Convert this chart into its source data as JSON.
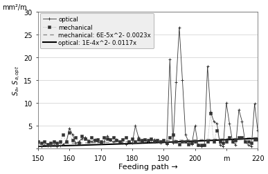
{
  "xlabel": "Feeding path →",
  "ylabel": "$S_a$, $S_{a,opt}$",
  "ylabel2": "mm²/m",
  "xlim": [
    150,
    220
  ],
  "ylim": [
    0,
    30
  ],
  "xticks": [
    150,
    160,
    170,
    180,
    190,
    200,
    210,
    220
  ],
  "xtick_labels": [
    "150",
    "160",
    "170",
    "180",
    "190",
    "200",
    "m",
    "220"
  ],
  "yticks": [
    0,
    5,
    10,
    15,
    20,
    25,
    30
  ],
  "optical_x": [
    150,
    151,
    152,
    153,
    154,
    155,
    156,
    157,
    158,
    159,
    160,
    161,
    162,
    163,
    164,
    165,
    166,
    167,
    168,
    169,
    170,
    171,
    172,
    173,
    174,
    175,
    176,
    177,
    178,
    179,
    180,
    181,
    182,
    183,
    184,
    185,
    186,
    187,
    188,
    189,
    190,
    191,
    192,
    193,
    194,
    195,
    196,
    197,
    198,
    199,
    200,
    201,
    202,
    203,
    204,
    205,
    206,
    207,
    208,
    209,
    210,
    211,
    212,
    213,
    214,
    215,
    216,
    217,
    218,
    219,
    220
  ],
  "optical_y": [
    0.5,
    0.5,
    0.8,
    0.6,
    0.7,
    0.8,
    0.5,
    0.6,
    0.9,
    1.5,
    4.5,
    3.0,
    1.2,
    1.5,
    2.2,
    2.5,
    1.8,
    1.5,
    2.0,
    1.5,
    1.2,
    1.5,
    2.8,
    1.8,
    1.5,
    2.0,
    1.5,
    1.2,
    1.0,
    1.5,
    1.2,
    5.0,
    2.5,
    1.5,
    1.8,
    1.5,
    1.8,
    2.0,
    1.5,
    1.2,
    1.5,
    1.0,
    19.5,
    1.2,
    14.5,
    26.5,
    15.0,
    3.0,
    1.5,
    1.0,
    5.0,
    0.8,
    0.5,
    0.8,
    18.0,
    8.0,
    6.0,
    5.5,
    0.8,
    0.5,
    10.0,
    5.5,
    1.5,
    0.8,
    8.5,
    6.0,
    1.5,
    0.8,
    0.5,
    9.8,
    4.0
  ],
  "mechanical_x": [
    150,
    151,
    152,
    153,
    154,
    155,
    156,
    157,
    158,
    159,
    160,
    161,
    162,
    163,
    164,
    165,
    166,
    167,
    168,
    169,
    170,
    171,
    172,
    173,
    174,
    175,
    176,
    177,
    178,
    179,
    180,
    181,
    182,
    183,
    184,
    185,
    186,
    187,
    188,
    189,
    190,
    191,
    192,
    193,
    194,
    195,
    196,
    197,
    198,
    199,
    200,
    201,
    202,
    203,
    204,
    205,
    206,
    207,
    208,
    209,
    210,
    211,
    212,
    213,
    214,
    215,
    216,
    217,
    218,
    219,
    220
  ],
  "mechanical_y": [
    1.5,
    1.2,
    1.5,
    1.0,
    1.2,
    1.5,
    1.2,
    1.5,
    3.0,
    1.5,
    3.5,
    1.8,
    2.5,
    1.2,
    2.8,
    2.2,
    1.5,
    2.5,
    1.8,
    2.0,
    1.5,
    2.5,
    2.2,
    2.0,
    2.5,
    1.8,
    1.5,
    2.0,
    2.5,
    1.5,
    2.2,
    1.5,
    2.0,
    1.8,
    2.0,
    1.8,
    2.2,
    1.5,
    1.8,
    1.5,
    1.8,
    1.2,
    2.5,
    3.0,
    1.5,
    1.0,
    1.5,
    1.5,
    1.0,
    1.2,
    1.5,
    0.8,
    0.8,
    0.8,
    1.5,
    7.8,
    1.5,
    4.0,
    1.5,
    1.2,
    1.5,
    2.5,
    1.5,
    1.8,
    2.5,
    2.5,
    1.5,
    1.5,
    1.2,
    2.0,
    2.0
  ],
  "mech_fit_label": "mechanical: 6E-5x^2- 0.0023x",
  "opt_fit_label": "optical: 1E-4x^2- 0.0117x",
  "legend_labels": [
    "optical",
    "mechanical",
    "mechanical: 6E-5x^2- 0.0023x",
    "optical: 1E-4x^2- 0.0117x"
  ]
}
